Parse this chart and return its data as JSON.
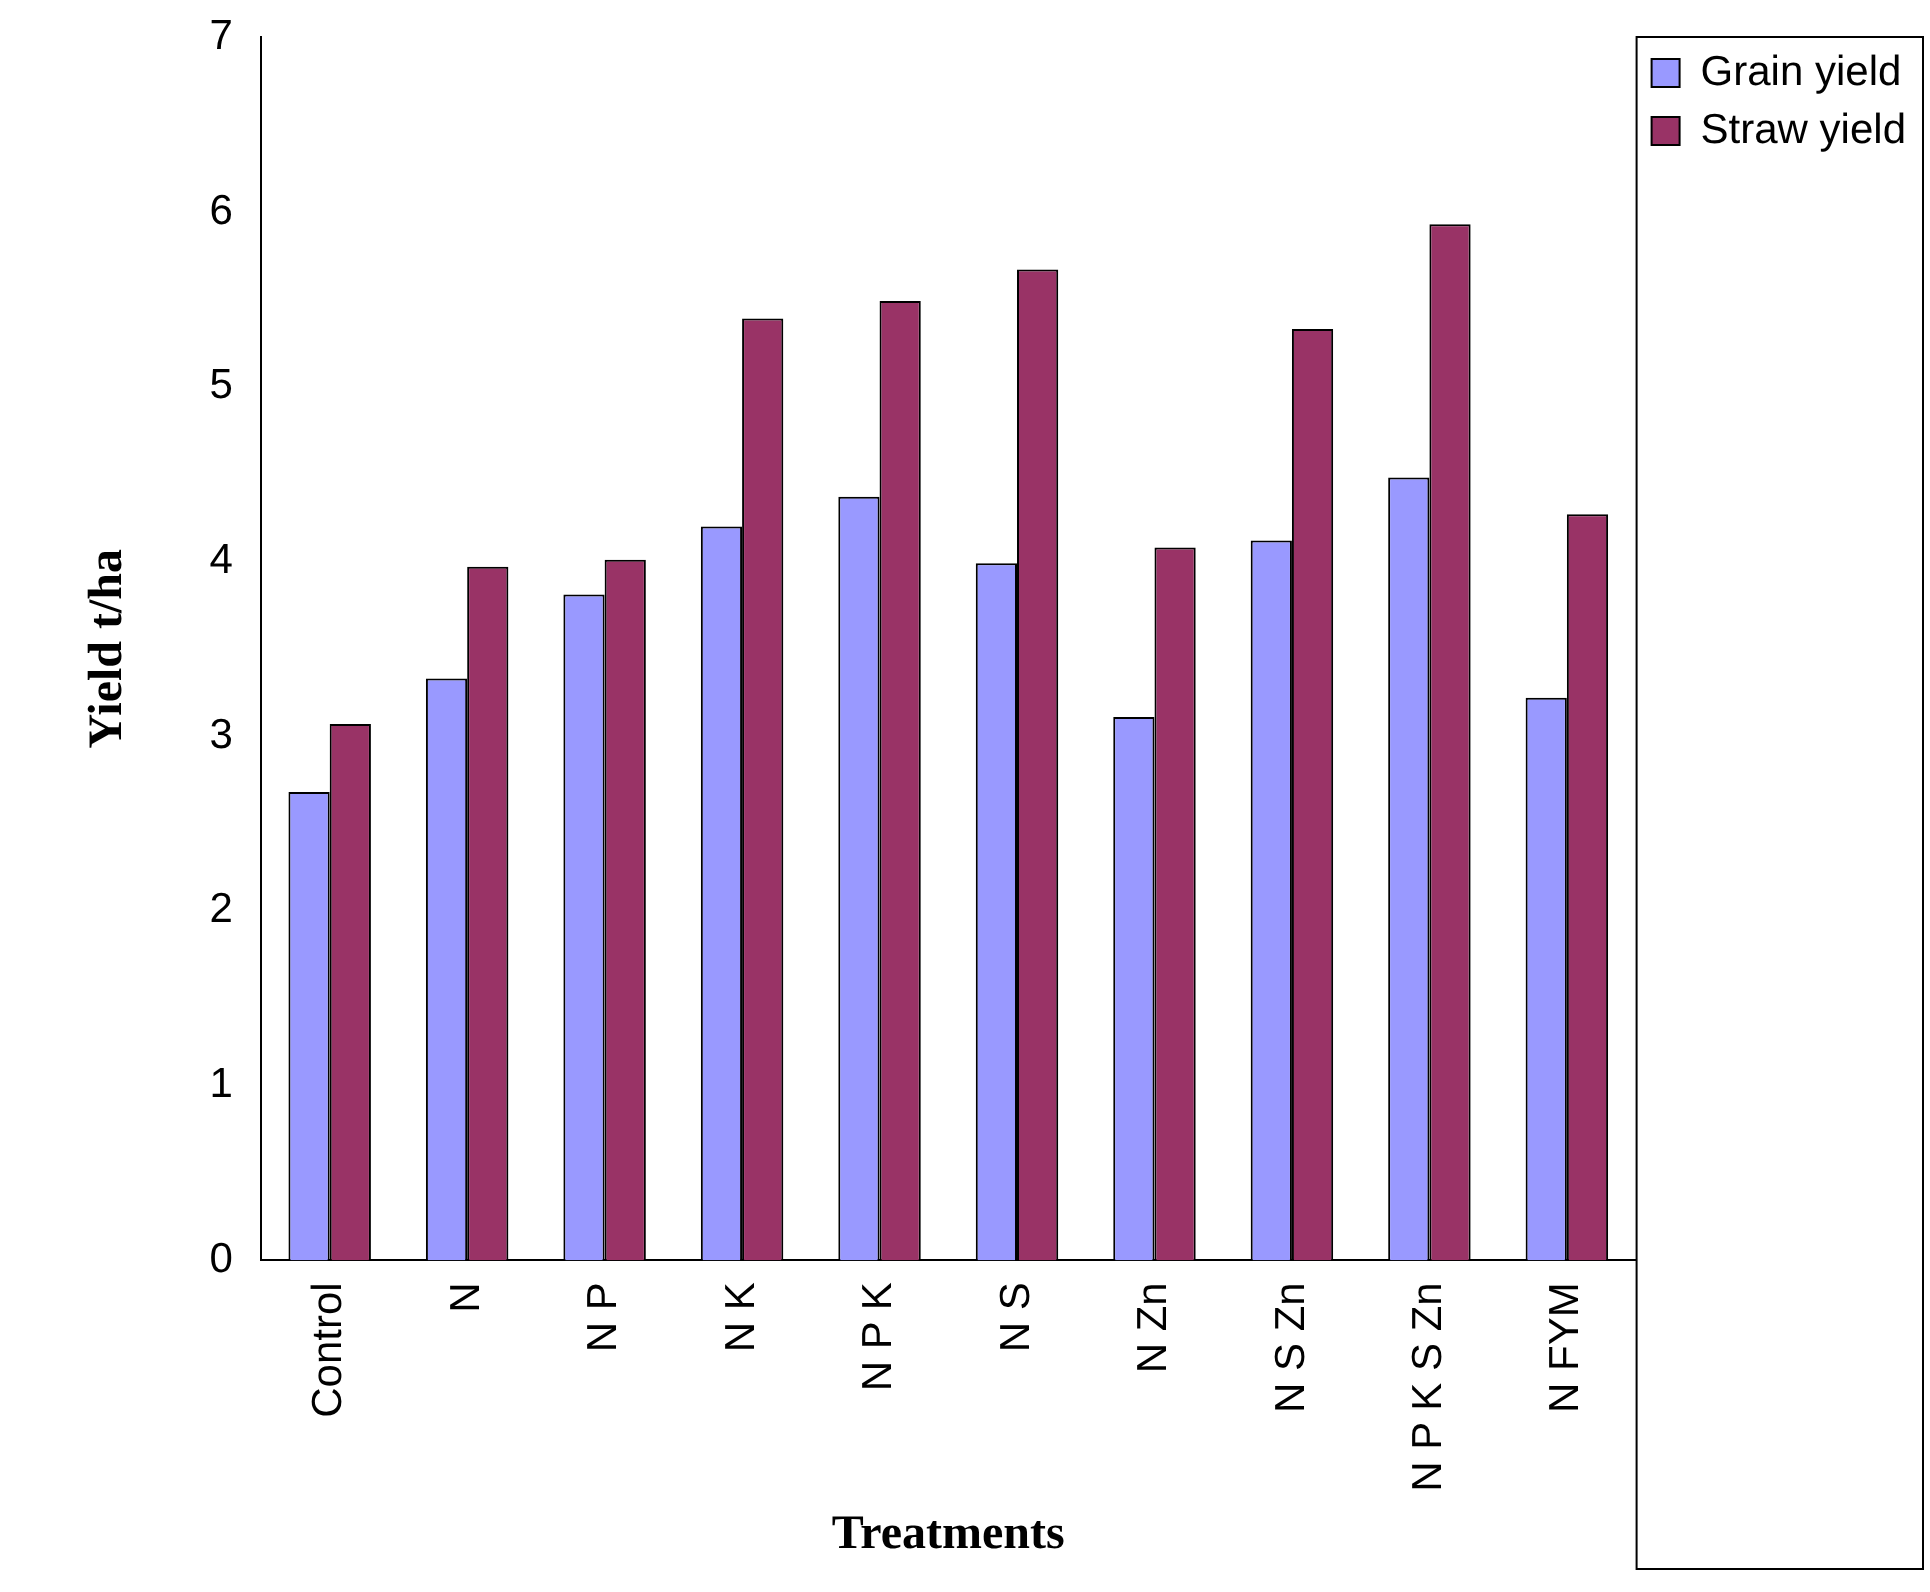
{
  "chart_data": {
    "type": "bar",
    "xlabel": "Treatments",
    "ylabel": "Yield t/ha",
    "categories": [
      "Control",
      "N",
      "N P",
      "N K",
      "N P K",
      "N S",
      "N Zn",
      "N S Zn",
      "N P K S Zn",
      "N FYM"
    ],
    "series": [
      {
        "name": "Grain yield",
        "color": "#9999ff",
        "values": [
          2.68,
          3.33,
          3.81,
          4.2,
          4.37,
          3.99,
          3.11,
          4.12,
          4.48,
          3.22
        ]
      },
      {
        "name": "Straw yield",
        "color": "#993366",
        "values": [
          3.07,
          3.97,
          4.01,
          5.39,
          5.49,
          5.67,
          4.08,
          5.33,
          5.93,
          4.27
        ]
      }
    ],
    "ylim": [
      0,
      7
    ],
    "yticks": [
      0,
      1,
      2,
      3,
      4,
      5,
      6,
      7
    ],
    "grid": false,
    "legend": "top right"
  }
}
